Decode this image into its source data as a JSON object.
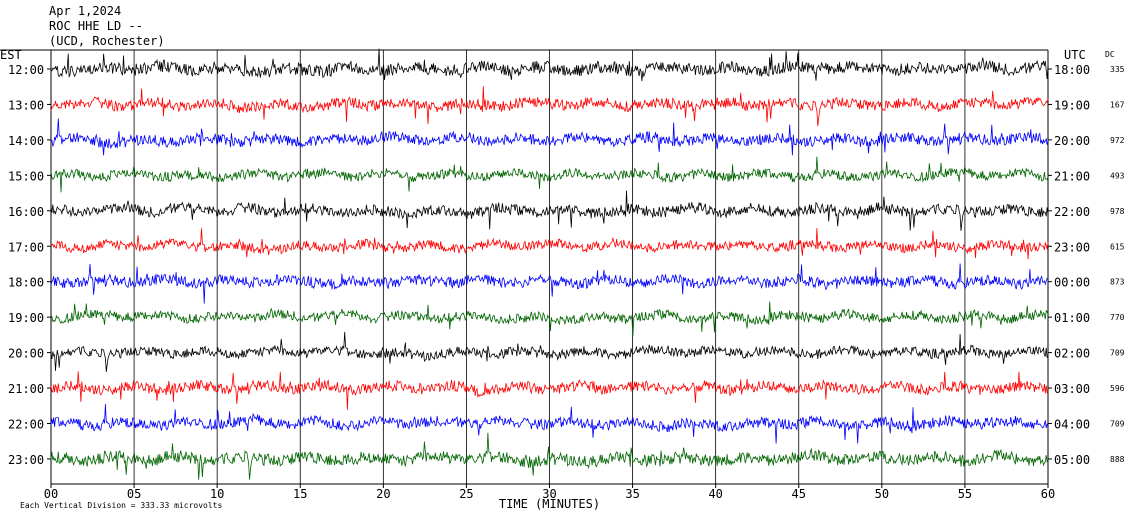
{
  "header": {
    "date": "Apr 1,2024",
    "station": "ROC HHE LD --",
    "location": "(UCD, Rochester)"
  },
  "axis": {
    "left_title": "EST",
    "right_title": "UTC",
    "dc_title": "DC",
    "x_title": "TIME (MINUTES)",
    "footer": "Each Vertical Division =  333.33 microvolts"
  },
  "colors": [
    "#000000",
    "#ff0000",
    "#0000ff",
    "#006400"
  ],
  "chart_data": {
    "type": "line",
    "title": "Apr 1,2024 ROC HHE LD -- (UCD, Rochester)",
    "xlabel": "TIME (MINUTES)",
    "xlim": [
      0,
      60
    ],
    "x_ticks": [
      "00",
      "05",
      "10",
      "15",
      "20",
      "25",
      "30",
      "35",
      "40",
      "45",
      "50",
      "55",
      "60"
    ],
    "grid": "vertical lines every 5 minutes",
    "vertical_division_microvolts": 333.33,
    "rows": [
      {
        "est": "12:00",
        "utc": "18:00",
        "dc": "335",
        "color": "#000000",
        "amp": 1.0
      },
      {
        "est": "13:00",
        "utc": "19:00",
        "dc": "167",
        "color": "#ff0000",
        "amp": 0.9
      },
      {
        "est": "14:00",
        "utc": "20:00",
        "dc": "972",
        "color": "#0000ff",
        "amp": 0.9
      },
      {
        "est": "15:00",
        "utc": "21:00",
        "dc": "493",
        "color": "#006400",
        "amp": 0.8
      },
      {
        "est": "16:00",
        "utc": "22:00",
        "dc": "978",
        "color": "#000000",
        "amp": 0.9
      },
      {
        "est": "17:00",
        "utc": "23:00",
        "dc": "615",
        "color": "#ff0000",
        "amp": 0.8
      },
      {
        "est": "18:00",
        "utc": "00:00",
        "dc": "873",
        "color": "#0000ff",
        "amp": 0.9
      },
      {
        "est": "19:00",
        "utc": "01:00",
        "dc": "770",
        "color": "#006400",
        "amp": 0.8
      },
      {
        "est": "20:00",
        "utc": "02:00",
        "dc": "709",
        "color": "#000000",
        "amp": 0.8
      },
      {
        "est": "21:00",
        "utc": "03:00",
        "dc": "596",
        "color": "#ff0000",
        "amp": 0.9
      },
      {
        "est": "22:00",
        "utc": "04:00",
        "dc": "709",
        "color": "#0000ff",
        "amp": 0.9
      },
      {
        "est": "23:00",
        "utc": "05:00",
        "dc": "888",
        "color": "#006400",
        "amp": 1.0
      }
    ]
  }
}
